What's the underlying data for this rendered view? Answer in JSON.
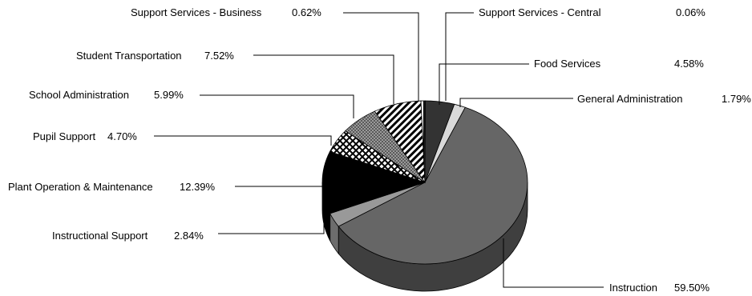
{
  "chart_data": {
    "type": "pie",
    "title": "",
    "three_d": true,
    "legend": "none",
    "slices": [
      {
        "label": "Support Services - Central",
        "value": 0.06,
        "value_label": "0.06%",
        "fill": "white-pattern"
      },
      {
        "label": "Food Services",
        "value": 4.58,
        "value_label": "4.58%",
        "fill": "#333333"
      },
      {
        "label": "General Administration",
        "value": 1.79,
        "value_label": "1.79%",
        "fill": "#d9d9d9"
      },
      {
        "label": "Instruction",
        "value": 59.5,
        "value_label": "59.50%",
        "fill": "#666666"
      },
      {
        "label": "Instructional Support",
        "value": 2.84,
        "value_label": "2.84%",
        "fill": "#999999"
      },
      {
        "label": "Plant Operation & Maintenance",
        "value": 12.39,
        "value_label": "12.39%",
        "fill": "#000000"
      },
      {
        "label": "Pupil Support",
        "value": 4.7,
        "value_label": "4.70%",
        "fill": "crosshatch"
      },
      {
        "label": "School Administration",
        "value": 5.99,
        "value_label": "5.99%",
        "fill": "checker"
      },
      {
        "label": "Student Transportation",
        "value": 7.52,
        "value_label": "7.52%",
        "fill": "diagonal-stripes"
      },
      {
        "label": "Support Services - Business",
        "value": 0.62,
        "value_label": "0.62%",
        "fill": "vertical-stripes"
      }
    ]
  }
}
